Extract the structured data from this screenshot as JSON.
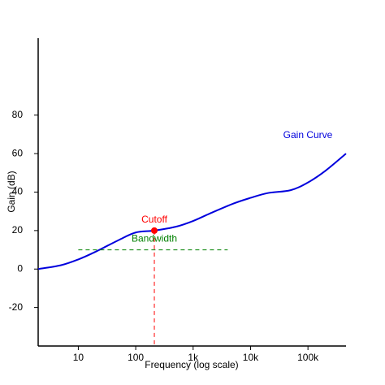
{
  "chart_data": {
    "type": "line",
    "xlabel": "Frequency (log scale)",
    "ylabel": "Gain (dB)",
    "xscale": "log",
    "xlim": [
      2,
      460000
    ],
    "ylim": [
      -40,
      120
    ],
    "xticks": [
      10,
      100,
      {
        "value": 1000,
        "label": "1k"
      },
      {
        "value": 10000,
        "label": "10k"
      },
      {
        "value": 100000,
        "label": "100k"
      }
    ],
    "yticks": [
      -20,
      0,
      20,
      40,
      60,
      80
    ],
    "grid": false,
    "series": [
      {
        "name": "Gain Curve",
        "color": "#0000dd",
        "x": [
          2,
          5,
          10,
          20,
          50,
          100,
          211,
          500,
          1000,
          2000,
          5000,
          10000,
          20000,
          50000,
          100000,
          200000,
          460000
        ],
        "values": [
          0,
          2,
          5,
          9,
          15,
          19,
          20,
          22,
          25,
          29,
          34,
          37,
          39.5,
          41,
          45,
          51,
          60
        ]
      }
    ],
    "annotations": {
      "cutoff": {
        "label": "Cutoff",
        "x": 211,
        "y": 20,
        "color": "red"
      },
      "bandwidth": {
        "label": "Bandwidth",
        "x": [
          10,
          4000
        ],
        "y": 10,
        "color": "green"
      }
    }
  }
}
